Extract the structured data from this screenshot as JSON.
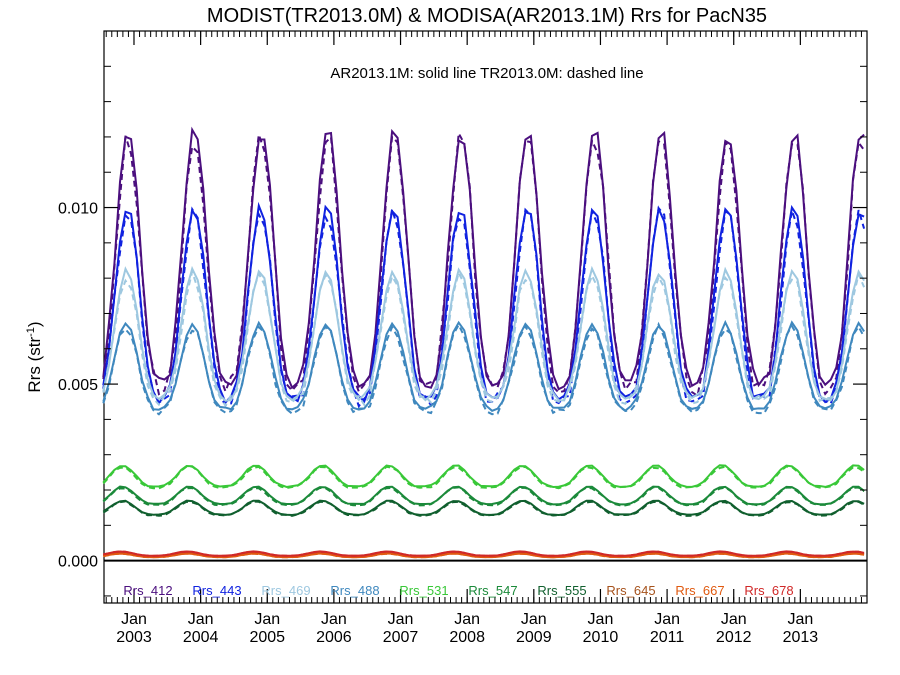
{
  "chart_data": {
    "type": "line",
    "title": "MODIST(TR2013.0M) & MODISA(AR2013.1M)  Rrs for PacN35",
    "annotation": "AR2013.1M: solid line   TR2013.0M: dashed line",
    "ylabel": "Rrs (str",
    "ylabel_sup": "-1",
    "ylabel_close": ")",
    "xlabel": "",
    "ylim": [
      -0.0012,
      0.015
    ],
    "xlim": [
      2002.55,
      2014.0
    ],
    "y_ticks": [
      {
        "value": 0.0,
        "label": "0.000"
      },
      {
        "value": 0.005,
        "label": "0.005"
      },
      {
        "value": 0.01,
        "label": "0.010"
      }
    ],
    "x_ticks": [
      {
        "value": 2003.0,
        "month": "Jan",
        "year": "2003"
      },
      {
        "value": 2004.0,
        "month": "Jan",
        "year": "2004"
      },
      {
        "value": 2005.0,
        "month": "Jan",
        "year": "2005"
      },
      {
        "value": 2006.0,
        "month": "Jan",
        "year": "2006"
      },
      {
        "value": 2007.0,
        "month": "Jan",
        "year": "2007"
      },
      {
        "value": 2008.0,
        "month": "Jan",
        "year": "2008"
      },
      {
        "value": 2009.0,
        "month": "Jan",
        "year": "2009"
      },
      {
        "value": 2010.0,
        "month": "Jan",
        "year": "2010"
      },
      {
        "value": 2011.0,
        "month": "Jan",
        "year": "2011"
      },
      {
        "value": 2012.0,
        "month": "Jan",
        "year": "2012"
      },
      {
        "value": 2013.0,
        "month": "Jan",
        "year": "2013"
      }
    ],
    "legend_position": "bottom",
    "grid": false,
    "zero_line": true,
    "series": [
      {
        "name": "Rrs_412",
        "color": "#4B0F7E",
        "min": 0.005,
        "max": 0.0122,
        "phase": -0.01
      },
      {
        "name": "Rrs_443",
        "color": "#1022E0",
        "min": 0.0046,
        "max": 0.01,
        "phase": 0.0
      },
      {
        "name": "Rrs_469",
        "color": "#9EC8E0",
        "min": 0.0046,
        "max": 0.0082,
        "phase": 0.01
      },
      {
        "name": "Rrs_488",
        "color": "#3F88BE",
        "min": 0.0043,
        "max": 0.0067,
        "phase": 0.02
      },
      {
        "name": "Rrs_531",
        "color": "#39C838",
        "min": 0.0021,
        "max": 0.0027,
        "phase": 0.07
      },
      {
        "name": "Rrs_547",
        "color": "#1B8A3A",
        "min": 0.0016,
        "max": 0.0021,
        "phase": 0.07
      },
      {
        "name": "Rrs_555",
        "color": "#105F2E",
        "min": 0.0013,
        "max": 0.0017,
        "phase": 0.07
      },
      {
        "name": "Rrs_645",
        "color": "#A6521C",
        "min": 0.00012,
        "max": 0.00022,
        "phase": 0.1
      },
      {
        "name": "Rrs_667",
        "color": "#E05A10",
        "min": 0.0001,
        "max": 0.0002,
        "phase": 0.1
      },
      {
        "name": "Rrs_678",
        "color": "#D02828",
        "min": 0.00014,
        "max": 0.00026,
        "phase": 0.1
      }
    ]
  }
}
